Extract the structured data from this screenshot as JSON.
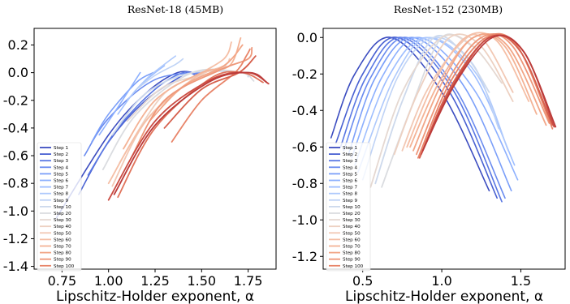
{
  "chart_data": [
    {
      "type": "line",
      "title": "ResNet-18 (45MB)",
      "xlabel": "Lipschitz-Holder exponent, α",
      "ylabel": "",
      "xlim": [
        0.6,
        1.9
      ],
      "ylim": [
        -1.42,
        0.32
      ],
      "xticks": [
        0.75,
        1.0,
        1.25,
        1.5,
        1.75
      ],
      "xtick_labels": [
        "0.75",
        "1.00",
        "1.25",
        "1.50",
        "1.75"
      ],
      "yticks": [
        0.2,
        0.0,
        -0.2,
        -0.4,
        -0.6,
        -0.8,
        -1.0,
        -1.2,
        -1.4
      ],
      "ytick_labels": [
        "0.2",
        "0.0",
        "-0.2",
        "-0.4",
        "-0.6",
        "-0.8",
        "-1.0",
        "-1.2",
        "-1.4"
      ],
      "legend_position": "lower-left",
      "series": [
        {
          "name": "Step 1",
          "color": "#3b4cc0",
          "x": [
            0.72,
            1.0,
            1.2,
            1.37,
            1.48
          ],
          "y": [
            -1.05,
            -0.45,
            -0.15,
            0.0,
            -0.01
          ]
        },
        {
          "name": "Step 2",
          "color": "#4961d2",
          "x": [
            0.84,
            1.0,
            1.2,
            1.42
          ],
          "y": [
            -0.88,
            -0.5,
            -0.2,
            0.0
          ]
        },
        {
          "name": "Step 3",
          "color": "#5977e3",
          "x": [
            0.89,
            1.05,
            1.25,
            1.4,
            1.47
          ],
          "y": [
            -0.74,
            -0.4,
            -0.12,
            0.0,
            -0.02
          ]
        },
        {
          "name": "Step 4",
          "color": "#6a8bef",
          "x": [
            0.87,
            1.0,
            1.25,
            1.52
          ],
          "y": [
            -0.6,
            -0.33,
            -0.05,
            0.0
          ]
        },
        {
          "name": "Step 5",
          "color": "#7b9ff9",
          "x": [
            0.91,
            1.0,
            1.15,
            1.24
          ],
          "y": [
            -0.5,
            -0.3,
            -0.07,
            0.0
          ]
        },
        {
          "name": "Step 6",
          "color": "#8db0fe",
          "x": [
            0.95,
            1.05,
            1.17
          ],
          "y": [
            -0.45,
            -0.25,
            0.0
          ]
        },
        {
          "name": "Step 7",
          "color": "#9ebeff",
          "x": [
            1.05,
            1.15,
            1.25,
            1.3
          ],
          "y": [
            -0.3,
            -0.12,
            0.0,
            0.05
          ]
        },
        {
          "name": "Step 8",
          "color": "#aec9fc",
          "x": [
            1.1,
            1.2,
            1.3,
            1.36
          ],
          "y": [
            -0.2,
            -0.05,
            0.06,
            0.12
          ]
        },
        {
          "name": "Step 9",
          "color": "#bfd3f6",
          "x": [
            1.15,
            1.25,
            1.36,
            1.4
          ],
          "y": [
            -0.12,
            -0.02,
            0.06,
            0.1
          ]
        },
        {
          "name": "Step 10",
          "color": "#cdd9ec",
          "x": [
            1.02,
            1.2,
            1.45,
            1.72,
            1.75
          ],
          "y": [
            -0.45,
            -0.15,
            0.0,
            0.0,
            -0.03
          ]
        },
        {
          "name": "Step 20",
          "color": "#dadce0",
          "x": [
            0.97,
            1.15,
            1.45,
            1.71,
            1.78
          ],
          "y": [
            -0.7,
            -0.3,
            0.0,
            0.0,
            -0.06
          ]
        },
        {
          "name": "Step 30",
          "color": "#e5d8d1",
          "x": [
            1.1,
            1.3,
            1.56,
            1.6
          ],
          "y": [
            -0.35,
            -0.1,
            0.0,
            0.03
          ]
        },
        {
          "name": "Step 40",
          "color": "#edd1c2",
          "x": [
            1.06,
            1.3,
            1.55,
            1.63
          ],
          "y": [
            -0.65,
            -0.15,
            0.0,
            0.05
          ]
        },
        {
          "name": "Step 50",
          "color": "#f2c8b4",
          "x": [
            1.02,
            1.2,
            1.45,
            1.62,
            1.65
          ],
          "y": [
            -0.82,
            -0.35,
            -0.05,
            0.05,
            0.1
          ]
        },
        {
          "name": "Step 60",
          "color": "#f5bfa6",
          "x": [
            1.0,
            1.2,
            1.45,
            1.62,
            1.66
          ],
          "y": [
            -0.8,
            -0.35,
            -0.05,
            0.1,
            0.22
          ]
        },
        {
          "name": "Step 70",
          "color": "#f4b396",
          "x": [
            1.08,
            1.25,
            1.5,
            1.65,
            1.71
          ],
          "y": [
            -0.55,
            -0.2,
            0.0,
            0.05,
            0.25
          ]
        },
        {
          "name": "Step 80",
          "color": "#f2a687",
          "x": [
            1.22,
            1.4,
            1.62,
            1.72
          ],
          "y": [
            -0.35,
            -0.1,
            0.05,
            0.2
          ]
        },
        {
          "name": "Step 90",
          "color": "#ee9779",
          "x": [
            1.12,
            1.3,
            1.6,
            1.75,
            1.77
          ],
          "y": [
            -0.62,
            -0.2,
            0.02,
            0.1,
            0.18
          ]
        },
        {
          "name": "Step 100",
          "color": "#e8856a",
          "x": [
            1.34,
            1.5,
            1.68,
            1.74,
            1.76
          ],
          "y": [
            -0.5,
            -0.2,
            0.0,
            0.12,
            0.17
          ]
        },
        {
          "name": "",
          "color": "#e0735b",
          "x": [
            1.05,
            1.25,
            1.55,
            1.72,
            1.83
          ],
          "y": [
            -0.9,
            -0.4,
            -0.04,
            0.0,
            -0.07
          ]
        },
        {
          "name": "",
          "color": "#d6604d",
          "x": [
            1.3,
            1.5,
            1.7,
            1.79
          ],
          "y": [
            -0.4,
            -0.12,
            0.0,
            0.12
          ]
        },
        {
          "name": "",
          "color": "#ca4b42",
          "x": [
            1.0,
            1.25,
            1.55,
            1.75,
            1.86
          ],
          "y": [
            -0.92,
            -0.35,
            -0.05,
            0.0,
            -0.08
          ]
        },
        {
          "name": "",
          "color": "#bb3b3a",
          "x": [
            1.03,
            1.25,
            1.55,
            1.76,
            1.85
          ],
          "y": [
            -0.88,
            -0.38,
            -0.06,
            0.0,
            -0.07
          ]
        }
      ]
    },
    {
      "type": "line",
      "title": "ResNet-152 (230MB)",
      "xlabel": "Lipschitz-Holder exponent, α",
      "ylabel": "",
      "xlim": [
        0.25,
        1.78
      ],
      "ylim": [
        -1.27,
        0.05
      ],
      "xticks": [
        0.5,
        1.0,
        1.5
      ],
      "xtick_labels": [
        "0.5",
        "1.0",
        "1.5"
      ],
      "yticks": [
        0.0,
        -0.2,
        -0.4,
        -0.6,
        -0.8,
        -1.0,
        -1.2
      ],
      "ytick_labels": [
        "0.0",
        "-0.2",
        "-0.4",
        "-0.6",
        "-0.8",
        "-1.0",
        "-1.2"
      ],
      "legend_position": "lower-left",
      "series": [
        {
          "name": "Step 1",
          "color": "#3b4cc0",
          "x": [
            0.3,
            0.45,
            0.68,
            1.0,
            1.3
          ],
          "y": [
            -0.55,
            -0.2,
            0.0,
            -0.3,
            -0.84
          ]
        },
        {
          "name": "Step 2",
          "color": "#4961d2",
          "x": [
            0.33,
            0.5,
            0.72,
            1.05,
            1.35
          ],
          "y": [
            -0.58,
            -0.2,
            0.0,
            -0.3,
            -0.88
          ]
        },
        {
          "name": "Step 3",
          "color": "#5977e3",
          "x": [
            0.36,
            0.52,
            0.75,
            1.08,
            1.38
          ],
          "y": [
            -0.6,
            -0.22,
            0.0,
            -0.3,
            -0.9
          ]
        },
        {
          "name": "Step 4",
          "color": "#6a8bef",
          "x": [
            0.38,
            0.55,
            0.78,
            1.1,
            1.4
          ],
          "y": [
            -0.62,
            -0.22,
            0.0,
            -0.3,
            -0.88
          ]
        },
        {
          "name": "Step 5",
          "color": "#7b9ff9",
          "x": [
            0.41,
            0.58,
            0.82,
            1.15,
            1.44
          ],
          "y": [
            -0.64,
            -0.22,
            0.0,
            -0.28,
            -0.84
          ]
        },
        {
          "name": "Step 6",
          "color": "#8db0fe",
          "x": [
            0.43,
            0.62,
            0.86,
            1.2,
            1.48
          ],
          "y": [
            -0.66,
            -0.22,
            0.0,
            -0.28,
            -0.78
          ]
        },
        {
          "name": "Step 7",
          "color": "#9ebeff",
          "x": [
            0.45,
            0.66,
            0.9,
            1.2,
            1.46
          ],
          "y": [
            -0.7,
            -0.22,
            0.0,
            -0.2,
            -0.7
          ]
        },
        {
          "name": "Step 8",
          "color": "#aec9fc",
          "x": [
            0.47,
            0.7,
            0.92,
            1.22,
            1.42
          ],
          "y": [
            -0.74,
            -0.22,
            0.0,
            -0.2,
            -0.62
          ]
        },
        {
          "name": "Step 9",
          "color": "#bfd3f6",
          "x": [
            0.5,
            0.72,
            0.95,
            1.2,
            1.36
          ],
          "y": [
            -0.78,
            -0.22,
            0.0,
            -0.15,
            -0.5
          ]
        },
        {
          "name": "Step 10",
          "color": "#cdd9ec",
          "x": [
            0.58,
            0.75,
            0.95,
            1.15,
            1.3
          ],
          "y": [
            -0.8,
            -0.35,
            0.0,
            -0.1,
            -0.3
          ]
        },
        {
          "name": "Step 20",
          "color": "#dadce0",
          "x": [
            0.62,
            0.8,
            1.0,
            1.2
          ],
          "y": [
            -0.82,
            -0.4,
            0.0,
            -0.05
          ]
        },
        {
          "name": "Step 30",
          "color": "#e5d8d1",
          "x": [
            0.55,
            0.75,
            1.0,
            1.2,
            1.38
          ],
          "y": [
            -0.82,
            -0.3,
            0.0,
            -0.05,
            -0.25
          ]
        },
        {
          "name": "Step 40",
          "color": "#edd1c2",
          "x": [
            0.7,
            0.85,
            1.05,
            1.25,
            1.45
          ],
          "y": [
            -0.64,
            -0.3,
            0.0,
            -0.05,
            -0.35
          ]
        },
        {
          "name": "Step 50",
          "color": "#f2c8b4",
          "x": [
            0.75,
            0.9,
            1.1,
            1.25,
            1.45
          ],
          "y": [
            -0.62,
            -0.3,
            -0.05,
            0.0,
            -0.3
          ]
        },
        {
          "name": "Step 60",
          "color": "#f5bfa6",
          "x": [
            0.78,
            0.95,
            1.15,
            1.35,
            1.55
          ],
          "y": [
            -0.6,
            -0.25,
            0.0,
            -0.02,
            -0.35
          ]
        },
        {
          "name": "Step 70",
          "color": "#f4b396",
          "x": [
            0.8,
            0.98,
            1.2,
            1.4,
            1.6
          ],
          "y": [
            -0.6,
            -0.25,
            0.0,
            -0.05,
            -0.42
          ]
        },
        {
          "name": "Step 80",
          "color": "#f2a687",
          "x": [
            0.82,
            1.0,
            1.2,
            1.42,
            1.66
          ],
          "y": [
            -0.62,
            -0.25,
            0.0,
            -0.05,
            -0.48
          ]
        },
        {
          "name": "Step 90",
          "color": "#ee9779",
          "x": [
            0.84,
            1.03,
            1.25,
            1.45,
            1.68
          ],
          "y": [
            -0.64,
            -0.25,
            0.0,
            -0.05,
            -0.47
          ]
        },
        {
          "name": "Step 100",
          "color": "#e8856a",
          "x": [
            0.85,
            1.05,
            1.28,
            1.48,
            1.7
          ],
          "y": [
            -0.66,
            -0.25,
            0.0,
            -0.05,
            -0.5
          ]
        },
        {
          "name": "",
          "color": "#d6604d",
          "x": [
            0.86,
            1.05,
            1.3,
            1.5,
            1.7
          ],
          "y": [
            -0.66,
            -0.28,
            0.0,
            -0.08,
            -0.48
          ]
        },
        {
          "name": "",
          "color": "#ca4b42",
          "x": [
            0.87,
            1.06,
            1.3,
            1.52,
            1.71
          ],
          "y": [
            -0.64,
            -0.28,
            0.0,
            -0.08,
            -0.49
          ]
        },
        {
          "name": "",
          "color": "#bb3b3a",
          "x": [
            0.88,
            1.08,
            1.32,
            1.52,
            1.72
          ],
          "y": [
            -0.62,
            -0.26,
            0.0,
            -0.08,
            -0.49
          ]
        }
      ]
    }
  ]
}
